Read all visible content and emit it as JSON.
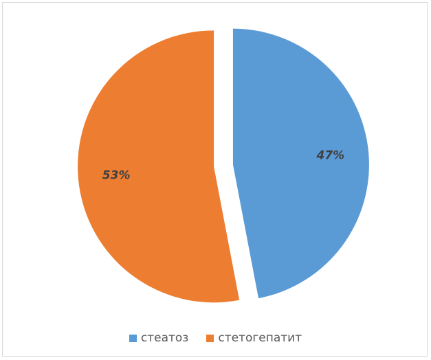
{
  "chart_data": {
    "type": "pie",
    "exploded": true,
    "categories": [
      "стеатоз",
      "стетогепатит"
    ],
    "values": [
      47,
      53
    ],
    "labels": [
      "47%",
      "53%"
    ],
    "colors": [
      "#5B9BD5",
      "#ED7D31"
    ],
    "legend_position": "bottom",
    "title": ""
  }
}
